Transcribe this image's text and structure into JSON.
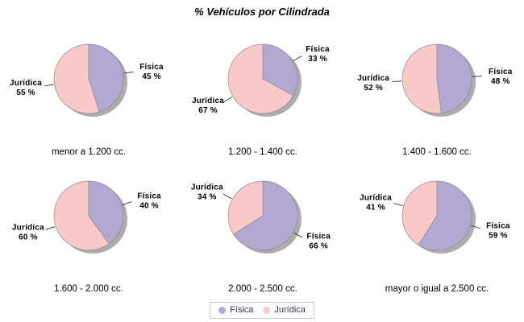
{
  "title": "% Vehículos por Cilindrada",
  "legend": {
    "items": [
      {
        "label": "Física",
        "color": "#b2a8d2"
      },
      {
        "label": "Jurídica",
        "color": "#f9c9c9"
      }
    ]
  },
  "chart_data": {
    "type": "pie",
    "title": "% Vehículos por Cilindrada",
    "legend_position": "bottom",
    "series_labels": [
      "Física",
      "Jurídica"
    ],
    "colors": {
      "Física": "#b2a8d2",
      "Jurídica": "#f9c9c9"
    },
    "shadow_color": "#979797",
    "outline_color": "#8a8a8a",
    "label_format": "{value} %",
    "layout": "2 rows x 3 columns",
    "charts": [
      {
        "category": "menor a 1.200 cc.",
        "slices": [
          {
            "label": "Física",
            "value": 45
          },
          {
            "label": "Jurídica",
            "value": 55
          }
        ]
      },
      {
        "category": "1.200 - 1.400 cc.",
        "slices": [
          {
            "label": "Física",
            "value": 33
          },
          {
            "label": "Jurídica",
            "value": 67
          }
        ]
      },
      {
        "category": "1.400 - 1.600 cc.",
        "slices": [
          {
            "label": "Física",
            "value": 48
          },
          {
            "label": "Jurídica",
            "value": 52
          }
        ]
      },
      {
        "category": "1.600 - 2.000 cc.",
        "slices": [
          {
            "label": "Física",
            "value": 40
          },
          {
            "label": "Jurídica",
            "value": 60
          }
        ]
      },
      {
        "category": "2.000 - 2.500 cc.",
        "slices": [
          {
            "label": "Física",
            "value": 66
          },
          {
            "label": "Jurídica",
            "value": 34
          }
        ]
      },
      {
        "category": "mayor o igual a 2.500 cc.",
        "slices": [
          {
            "label": "Física",
            "value": 59
          },
          {
            "label": "Jurídica",
            "value": 41
          }
        ]
      }
    ]
  }
}
